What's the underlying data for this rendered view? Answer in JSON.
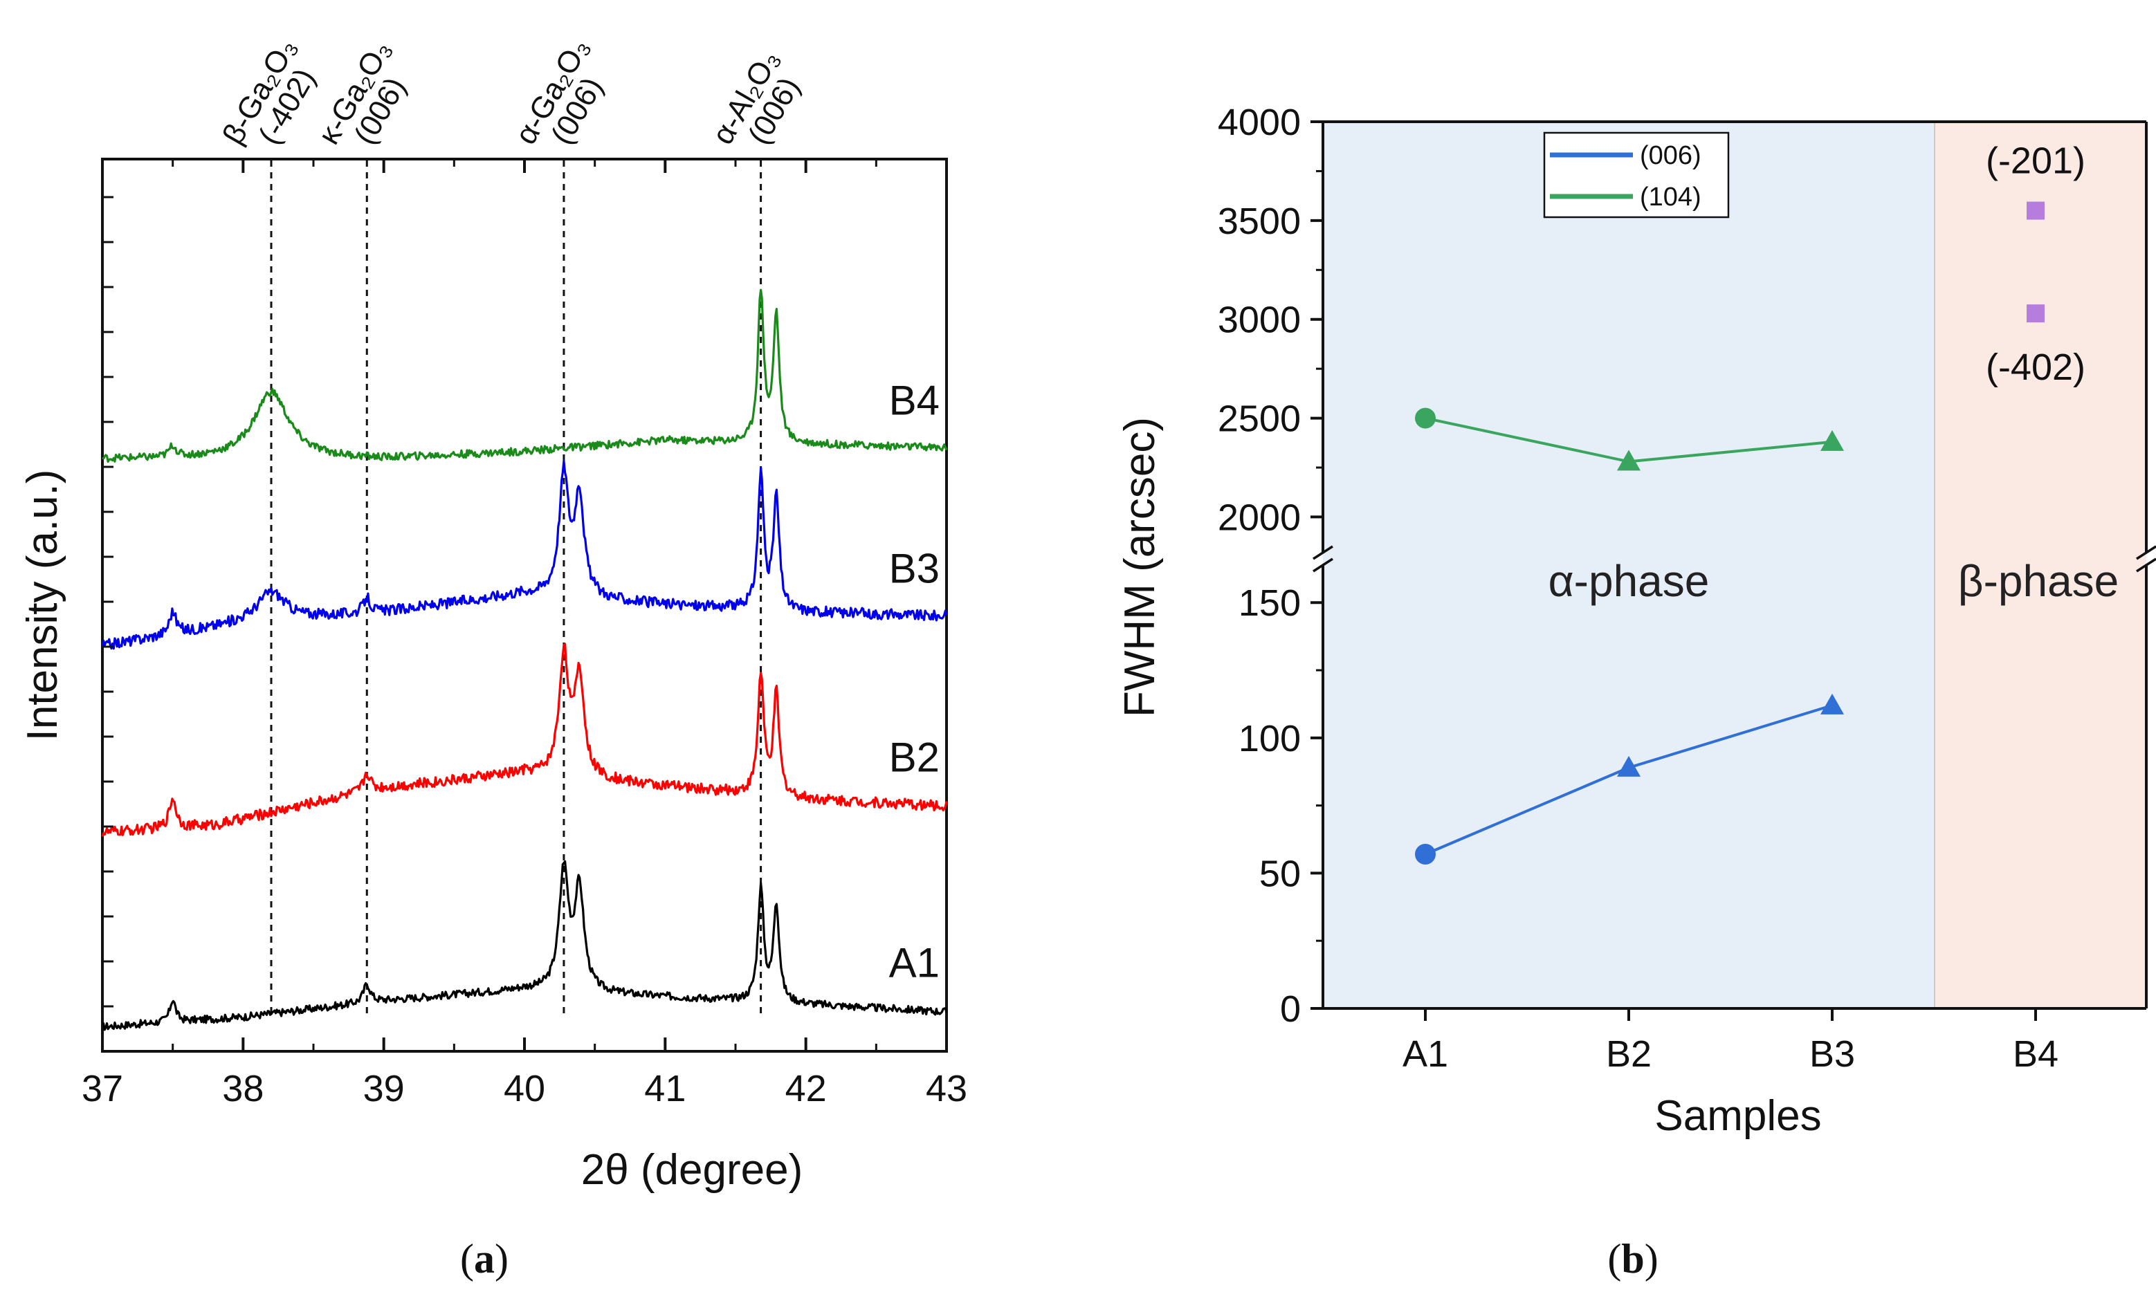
{
  "chart_data": [
    {
      "panel": "(a)",
      "type": "line",
      "title": "",
      "xlabel": "2θ (degree)",
      "ylabel": "Intensity (a.u.)",
      "xlim": [
        37,
        43
      ],
      "xticks": [
        "37",
        "38",
        "39",
        "40",
        "41",
        "42",
        "43"
      ],
      "grid": false,
      "reference_lines": [
        {
          "x": 38.2,
          "label_top": "β-Ga₂O₃",
          "label_bottom": "(-402)"
        },
        {
          "x": 38.88,
          "label_top": "κ-Ga₂O₃",
          "label_bottom": "(006)"
        },
        {
          "x": 40.28,
          "label_top": "α-Ga₂O₃",
          "label_bottom": "(006)"
        },
        {
          "x": 41.68,
          "label_top": "α-Al₂O₃",
          "label_bottom": "(006)"
        }
      ],
      "series": [
        {
          "name": "A1",
          "color": "#000000",
          "offset": 0,
          "peaks": [
            [
              37.5,
              0.3,
              0.025
            ],
            [
              38.88,
              0.25,
              0.03
            ],
            [
              40.28,
              1.6,
              0.04
            ],
            [
              40.39,
              1.35,
              0.04
            ],
            [
              41.68,
              1.5,
              0.025
            ],
            [
              41.79,
              1.3,
              0.025
            ]
          ],
          "background": [
            [
              37,
              0.05
            ],
            [
              38,
              0.18
            ],
            [
              39,
              0.4
            ],
            [
              40,
              0.55
            ],
            [
              41,
              0.45
            ],
            [
              42,
              0.35
            ],
            [
              43,
              0.25
            ]
          ],
          "noise": 0.05
        },
        {
          "name": "B2",
          "color": "#ff0000",
          "offset": 2.55,
          "peaks": [
            [
              37.5,
              0.4,
              0.03
            ],
            [
              38.88,
              0.25,
              0.03
            ],
            [
              40.28,
              1.6,
              0.04
            ],
            [
              40.39,
              1.35,
              0.04
            ],
            [
              41.68,
              1.6,
              0.025
            ],
            [
              41.79,
              1.35,
              0.025
            ]
          ],
          "background": [
            [
              37,
              0.1
            ],
            [
              37.8,
              0.2
            ],
            [
              38.5,
              0.5
            ],
            [
              39,
              0.7
            ],
            [
              40,
              0.9
            ],
            [
              41,
              0.72
            ],
            [
              42,
              0.55
            ],
            [
              43,
              0.45
            ]
          ],
          "noise": 0.07
        },
        {
          "name": "B3",
          "color": "#0000ee",
          "offset": 5.05,
          "peaks": [
            [
              37.5,
              0.3,
              0.03
            ],
            [
              38.2,
              0.4,
              0.12
            ],
            [
              38.88,
              0.2,
              0.03
            ],
            [
              40.28,
              1.6,
              0.04
            ],
            [
              40.39,
              1.35,
              0.04
            ],
            [
              41.68,
              1.8,
              0.025
            ],
            [
              41.79,
              1.5,
              0.025
            ]
          ],
          "background": [
            [
              37,
              0.1
            ],
            [
              38,
              0.4
            ],
            [
              39,
              0.55
            ],
            [
              40,
              0.8
            ],
            [
              41,
              0.65
            ],
            [
              42,
              0.55
            ],
            [
              43,
              0.5
            ]
          ],
          "noise": 0.07
        },
        {
          "name": "B4",
          "color": "#1a8a1a",
          "offset": 7.6,
          "peaks": [
            [
              37.5,
              0.15,
              0.03
            ],
            [
              38.2,
              0.9,
              0.15
            ],
            [
              41.68,
              2.0,
              0.025
            ],
            [
              41.79,
              1.7,
              0.025
            ]
          ],
          "background": [
            [
              37,
              0.05
            ],
            [
              39,
              0.05
            ],
            [
              40,
              0.15
            ],
            [
              41,
              0.3
            ],
            [
              42,
              0.25
            ],
            [
              43,
              0.2
            ]
          ],
          "noise": 0.05
        }
      ]
    },
    {
      "panel": "(b)",
      "type": "line",
      "title": "",
      "xlabel": "Samples",
      "ylabel": "FWHM (arcsec)",
      "categories": [
        "A1",
        "B2",
        "B3",
        "B4"
      ],
      "y_upper_range": [
        1900,
        4000
      ],
      "y_upper_ticks": [
        "2000",
        "2500",
        "3000",
        "3500",
        "4000"
      ],
      "y_lower_range": [
        0,
        170
      ],
      "y_lower_ticks": [
        "0",
        "50",
        "100",
        "150"
      ],
      "grid": false,
      "legend_position": "top-left",
      "regions": [
        {
          "label": "α-phase",
          "categories": [
            "A1",
            "B2",
            "B3"
          ],
          "color": "#e6eef8"
        },
        {
          "label": "β-phase",
          "categories": [
            "B4"
          ],
          "color": "#fbe9e3"
        }
      ],
      "series": [
        {
          "name": "(006)",
          "color": "#2f6fd6",
          "values": [
            57,
            89,
            112,
            null
          ],
          "markers": [
            "circle",
            "triangle",
            "triangle"
          ]
        },
        {
          "name": "(104)",
          "color": "#3aa55e",
          "values": [
            2500,
            2280,
            2380,
            null
          ],
          "markers": [
            "circle",
            "triangle",
            "triangle"
          ]
        }
      ],
      "extra_points": [
        {
          "category": "B4",
          "value": 3550,
          "label": "(-201)",
          "color": "#b57edc"
        },
        {
          "category": "B4",
          "value": 3030,
          "label": "(-402)",
          "color": "#b57edc"
        }
      ]
    }
  ],
  "captions": {
    "a": {
      "open": "(",
      "letter": "a",
      "close": ")"
    },
    "b": {
      "open": "(",
      "letter": "b",
      "close": ")"
    }
  }
}
